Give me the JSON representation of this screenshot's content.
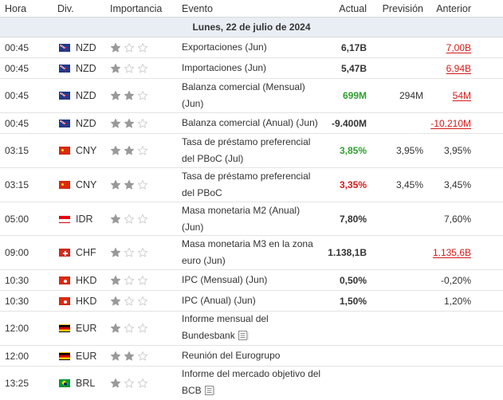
{
  "headers": {
    "time": "Hora",
    "currency": "Div.",
    "importance": "Importancia",
    "event": "Evento",
    "actual": "Actual",
    "forecast": "Previsión",
    "previous": "Anterior"
  },
  "day_label": "Lunes, 22 de julio de 2024",
  "colors": {
    "positive": "#2f9e2f",
    "negative": "#d41a1a",
    "star_filled": "#9a9a9a",
    "star_empty": "#cfcfcf",
    "day_bg": "#e9eef4"
  },
  "rows": [
    {
      "time": "00:45",
      "flag": "flag-nzd",
      "currency": "NZD",
      "importance": 1,
      "event": "Exportaciones (Jun)",
      "actual": "6,17B",
      "actual_style": "",
      "forecast": "",
      "previous": "7,00B",
      "previous_style": "red-underline"
    },
    {
      "time": "00:45",
      "flag": "flag-nzd",
      "currency": "NZD",
      "importance": 1,
      "event": "Importaciones (Jun)",
      "actual": "5,47B",
      "actual_style": "",
      "forecast": "",
      "previous": "6,94B",
      "previous_style": "red-underline"
    },
    {
      "time": "00:45",
      "flag": "flag-nzd",
      "currency": "NZD",
      "importance": 2,
      "event": "Balanza comercial (Mensual) (Jun)",
      "actual": "699M",
      "actual_style": "green",
      "forecast": "294M",
      "previous": "54M",
      "previous_style": "red-underline"
    },
    {
      "time": "00:45",
      "flag": "flag-nzd",
      "currency": "NZD",
      "importance": 2,
      "event": "Balanza comercial (Anual) (Jun)",
      "actual": "-9.400M",
      "actual_style": "",
      "forecast": "",
      "previous": "-10.210M",
      "previous_style": "red-underline"
    },
    {
      "time": "03:15",
      "flag": "flag-cny",
      "currency": "CNY",
      "importance": 2,
      "event": "Tasa de préstamo preferencial del PBoC (Jul)",
      "actual": "3,85%",
      "actual_style": "green",
      "forecast": "3,95%",
      "previous": "3,95%",
      "previous_style": ""
    },
    {
      "time": "03:15",
      "flag": "flag-cny",
      "currency": "CNY",
      "importance": 2,
      "event": "Tasa de préstamo preferencial del PBoC",
      "actual": "3,35%",
      "actual_style": "red",
      "forecast": "3,45%",
      "previous": "3,45%",
      "previous_style": ""
    },
    {
      "time": "05:00",
      "flag": "flag-idr",
      "currency": "IDR",
      "importance": 1,
      "event": "Masa monetaria M2 (Anual) (Jun)",
      "actual": "7,80%",
      "actual_style": "",
      "forecast": "",
      "previous": "7,60%",
      "previous_style": ""
    },
    {
      "time": "09:00",
      "flag": "flag-chf",
      "currency": "CHF",
      "importance": 1,
      "event": "Masa monetaria M3 en la zona euro (Jun)",
      "actual": "1.138,1B",
      "actual_style": "",
      "forecast": "",
      "previous": "1.135,6B",
      "previous_style": "red-underline"
    },
    {
      "time": "10:30",
      "flag": "flag-hkd",
      "currency": "HKD",
      "importance": 1,
      "event": "IPC (Mensual) (Jun)",
      "actual": "0,50%",
      "actual_style": "",
      "forecast": "",
      "previous": "-0,20%",
      "previous_style": ""
    },
    {
      "time": "10:30",
      "flag": "flag-hkd",
      "currency": "HKD",
      "importance": 1,
      "event": "IPC (Anual) (Jun)",
      "actual": "1,50%",
      "actual_style": "",
      "forecast": "",
      "previous": "1,20%",
      "previous_style": ""
    },
    {
      "time": "12:00",
      "flag": "flag-eur",
      "currency": "EUR",
      "importance": 1,
      "event": "Informe mensual del Bundesbank",
      "has_note": true,
      "actual": "",
      "actual_style": "",
      "forecast": "",
      "previous": "",
      "previous_style": ""
    },
    {
      "time": "12:00",
      "flag": "flag-eur",
      "currency": "EUR",
      "importance": 2,
      "event": "Reunión del Eurogrupo",
      "actual": "",
      "actual_style": "",
      "forecast": "",
      "previous": "",
      "previous_style": ""
    },
    {
      "time": "13:25",
      "flag": "flag-brl",
      "currency": "BRL",
      "importance": 1,
      "event": "Informe del mercado objetivo del BCB",
      "has_note": true,
      "actual": "",
      "actual_style": "",
      "forecast": "",
      "previous": "",
      "previous_style": ""
    }
  ]
}
